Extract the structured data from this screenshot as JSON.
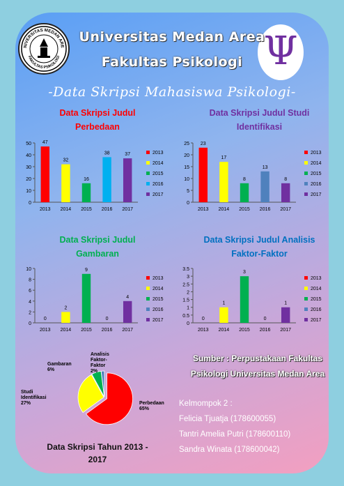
{
  "header": {
    "university": "Universitas Medan Area",
    "faculty": "Fakultas Psikologi",
    "subtitle": "-Data Skripsi Mahasiswa Psikologi-",
    "logo_left_text": "UNIVERSITAS MEDAN AREA",
    "logo_left_bottom": "FAKULTAS PSIKOLOGI",
    "logo_right_symbol": "Ψ"
  },
  "colors": {
    "2013": "#ff0000",
    "2014": "#ffff00",
    "2015": "#00b050",
    "2016": "#00b0f0",
    "2017": "#7030a0",
    "title_red": "#ff0000",
    "title_purple": "#7030a0",
    "title_green": "#00b050",
    "title_blue": "#0070c0"
  },
  "chart_data": [
    {
      "type": "bar",
      "title_line1": "Data Skripsi Judul",
      "title_line2": "Perbedaan",
      "categories": [
        "2013",
        "2014",
        "2015",
        "2016",
        "2017"
      ],
      "values": [
        47,
        32,
        16,
        38,
        37
      ],
      "bar_colors": [
        "#ff0000",
        "#ffff00",
        "#00b050",
        "#00b0f0",
        "#7030a0"
      ],
      "ylim": [
        0,
        50
      ],
      "yticks": [
        0,
        10,
        20,
        30,
        40,
        50
      ],
      "legend": [
        "2013",
        "2014",
        "2015",
        "2016",
        "2017"
      ]
    },
    {
      "type": "bar",
      "title_line1": "Data Skripsi Judul Studi",
      "title_line2": "Identifikasi",
      "categories": [
        "2013",
        "2014",
        "2015",
        "2016",
        "2017"
      ],
      "values": [
        23,
        17,
        8,
        13,
        8
      ],
      "bar_colors": [
        "#ff0000",
        "#ffff00",
        "#00b050",
        "#4f81bd",
        "#7030a0"
      ],
      "ylim": [
        0,
        25
      ],
      "yticks": [
        0,
        5,
        10,
        15,
        20,
        25
      ],
      "legend": [
        "2013",
        "2014",
        "2015",
        "2016",
        "2017"
      ]
    },
    {
      "type": "bar",
      "title_line1": "Data Skripsi Judul",
      "title_line2": "Gambaran",
      "categories": [
        "2013",
        "2014",
        "2015",
        "2016",
        "2017"
      ],
      "values": [
        0,
        2,
        9,
        0,
        4
      ],
      "bar_colors": [
        "#ff0000",
        "#ffff00",
        "#00b050",
        "#4f81bd",
        "#7030a0"
      ],
      "ylim": [
        0,
        10
      ],
      "yticks": [
        0,
        2,
        4,
        6,
        8,
        10
      ],
      "legend": [
        "2013",
        "2014",
        "2015",
        "2016",
        "2017"
      ]
    },
    {
      "type": "bar",
      "title_line1": "Data Skripsi Judul Analisis",
      "title_line2": "Faktor-Faktor",
      "categories": [
        "2013",
        "2014",
        "2015",
        "2016",
        "2017"
      ],
      "values": [
        0,
        1,
        3,
        0,
        1
      ],
      "bar_colors": [
        "#ff0000",
        "#ffff00",
        "#00b050",
        "#4f81bd",
        "#7030a0"
      ],
      "ylim": [
        0,
        3.5
      ],
      "yticks": [
        0,
        0.5,
        1,
        1.5,
        2,
        2.5,
        3,
        3.5
      ],
      "legend": [
        "2013",
        "2014",
        "2015",
        "2016",
        "2017"
      ]
    },
    {
      "type": "pie",
      "title_line1": "Data Skripsi Tahun 2013 -",
      "title_line2": "2017",
      "slices": [
        {
          "label": "Perbedaan",
          "pct": "65%",
          "value": 65,
          "color": "#ff0000"
        },
        {
          "label": "Studi Identifikasi",
          "pct": "27%",
          "value": 27,
          "color": "#ffff00"
        },
        {
          "label": "Gambaran",
          "pct": "6%",
          "value": 6,
          "color": "#00b050"
        },
        {
          "label": "Analisis Faktor-Faktor",
          "pct": "2%",
          "value": 2,
          "color": "#4f81bd"
        }
      ]
    }
  ],
  "source": {
    "line1": "Sumber : Perpustakaan Fakultas",
    "line2": "Psikologi Universitas Medan Area"
  },
  "group": {
    "heading": "Kelmompok 2 :",
    "members": [
      "Felicia Tjuatja (178600055)",
      "Tantri Amelia Putri (178600110)",
      "Sandra Winata (178600042)"
    ]
  }
}
